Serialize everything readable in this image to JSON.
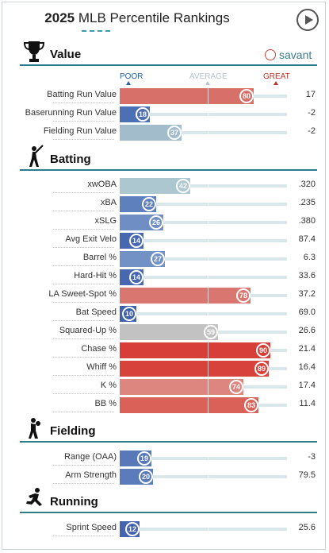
{
  "title": {
    "year": "2025",
    "rest": "MLB Percentile Rankings"
  },
  "brand": {
    "name": "savant",
    "icon": "baseball-icon"
  },
  "controls": {
    "play_icon": "play-icon"
  },
  "scale_labels": {
    "poor": "POOR",
    "average": "AVERAGE",
    "great": "GREAT"
  },
  "colors": {
    "poor": "#2b5fa8",
    "great": "#c4302b",
    "teal": "#2e7d8a"
  },
  "sections": {
    "value": {
      "title": "Value",
      "icon": "trophy-icon",
      "rows": [
        {
          "name": "Batting Run Value",
          "pct": "80",
          "value": "17",
          "color": "#d8706a"
        },
        {
          "name": "Baserunning Run Value",
          "pct": "18",
          "value": "-2",
          "color": "#4d6fb3"
        },
        {
          "name": "Fielding Run Value",
          "pct": "37",
          "value": "-2",
          "color": "#a2bccb"
        }
      ]
    },
    "batting": {
      "title": "Batting",
      "icon": "batter-icon",
      "rows": [
        {
          "name": "xwOBA",
          "pct": "42",
          "value": ".320",
          "color": "#adc7d0"
        },
        {
          "name": "xBA",
          "pct": "22",
          "value": ".235",
          "color": "#5e80bd"
        },
        {
          "name": "xSLG",
          "pct": "26",
          "value": ".380",
          "color": "#6f8fc4"
        },
        {
          "name": "Avg Exit Velo",
          "pct": "14",
          "value": "87.4",
          "color": "#4768b0"
        },
        {
          "name": "Barrel %",
          "pct": "27",
          "value": "6.3",
          "color": "#7291c5"
        },
        {
          "name": "Hard-Hit %",
          "pct": "14",
          "value": "33.6",
          "color": "#4768b0"
        },
        {
          "name": "LA Sweet-Spot %",
          "pct": "78",
          "value": "37.2",
          "color": "#d9766f"
        },
        {
          "name": "Bat Speed",
          "pct": "10",
          "value": "69.0",
          "color": "#3d62ab"
        },
        {
          "name": "Squared-Up %",
          "pct": "59",
          "value": "26.6",
          "color": "#c2c2c2"
        },
        {
          "name": "Chase %",
          "pct": "90",
          "value": "21.4",
          "color": "#d63e37"
        },
        {
          "name": "Whiff %",
          "pct": "89",
          "value": "16.4",
          "color": "#d7423a"
        },
        {
          "name": "K %",
          "pct": "74",
          "value": "17.4",
          "color": "#dc867f"
        },
        {
          "name": "BB %",
          "pct": "83",
          "value": "11.4",
          "color": "#da6158"
        }
      ]
    },
    "fielding": {
      "title": "Fielding",
      "icon": "fielder-icon",
      "rows": [
        {
          "name": "Range (OAA)",
          "pct": "19",
          "value": "-3",
          "color": "#5878b8"
        },
        {
          "name": "Arm Strength",
          "pct": "20",
          "value": "79.5",
          "color": "#5b7bba"
        }
      ]
    },
    "running": {
      "title": "Running",
      "icon": "runner-icon",
      "rows": [
        {
          "name": "Sprint Speed",
          "pct": "12",
          "value": "25.6",
          "color": "#4465ad"
        }
      ]
    }
  }
}
